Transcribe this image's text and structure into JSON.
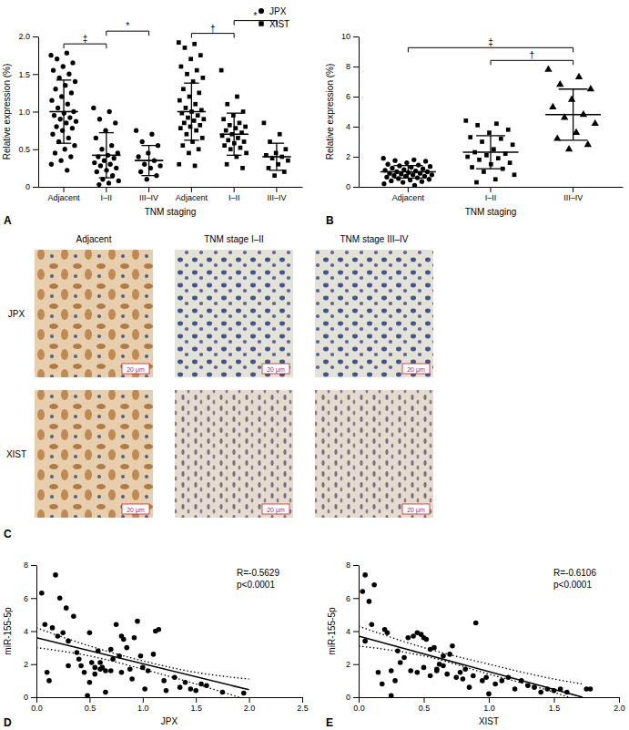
{
  "chart_data": [
    {
      "type": "dot_plot",
      "title": "A",
      "xlabel": "TNM staging",
      "ylabel": "Relative expression (%)",
      "categories": [
        "Adjacent",
        "I–II",
        "III–IV",
        "Adjacent",
        "I–II",
        "III–IV"
      ],
      "ylim": [
        0,
        2
      ],
      "yticks": [
        0,
        0.5,
        {
          "value": 1,
          "label": "1.0"
        },
        1.5,
        {
          "value": 2,
          "label": "2.0"
        }
      ],
      "legend": "top-right",
      "series": [
        {
          "name": "JPX",
          "marker": "circle",
          "color": "#000000",
          "values": [
            [
              1.75,
              1.78,
              1.7,
              1.65,
              1.6,
              1.55,
              1.5,
              1.45,
              1.4,
              1.35,
              1.3,
              1.25,
              1.2,
              1.15,
              1.1,
              1.05,
              1.0,
              0.98,
              0.95,
              0.92,
              0.9,
              0.87,
              0.85,
              0.8,
              0.78,
              0.75,
              0.7,
              0.65,
              0.6,
              0.55,
              0.5,
              0.45,
              0.4,
              0.35,
              0.3,
              0.22
            ],
            [
              1.05,
              1.0,
              0.9,
              0.85,
              0.75,
              0.65,
              0.55,
              0.5,
              0.45,
              0.42,
              0.4,
              0.38,
              0.35,
              0.32,
              0.3,
              0.28,
              0.25,
              0.22,
              0.2,
              0.15,
              0.1,
              0.08,
              0.05,
              0.03
            ],
            [
              0.75,
              0.7,
              0.6,
              0.55,
              0.45,
              0.4,
              0.35,
              0.3,
              0.28,
              0.25,
              0.2,
              0.15,
              0.1
            ],
            null,
            null,
            null
          ],
          "mean": [
            1.0,
            0.42,
            0.35,
            null,
            null,
            null
          ],
          "error": [
            0.42,
            0.3,
            0.2,
            null,
            null,
            null
          ]
        },
        {
          "name": "XIST",
          "marker": "square",
          "color": "#000000",
          "values": [
            null,
            null,
            null,
            [
              1.92,
              1.9,
              1.85,
              1.75,
              1.7,
              1.6,
              1.55,
              1.5,
              1.45,
              1.4,
              1.3,
              1.25,
              1.2,
              1.15,
              1.1,
              1.05,
              1.02,
              1.0,
              0.98,
              0.95,
              0.92,
              0.9,
              0.88,
              0.85,
              0.82,
              0.8,
              0.78,
              0.75,
              0.7,
              0.65,
              0.6,
              0.55,
              0.5,
              0.45,
              0.3,
              0.28
            ],
            [
              1.55,
              1.2,
              1.1,
              1.0,
              0.95,
              0.9,
              0.85,
              0.82,
              0.8,
              0.78,
              0.75,
              0.72,
              0.7,
              0.68,
              0.65,
              0.62,
              0.6,
              0.58,
              0.55,
              0.52,
              0.5,
              0.45,
              0.4,
              0.3,
              0.25
            ],
            [
              0.85,
              0.7,
              0.6,
              0.5,
              0.45,
              0.42,
              0.4,
              0.38,
              0.35,
              0.3,
              0.25,
              0.2,
              0.15
            ]
          ],
          "mean": [
            null,
            null,
            null,
            1.0,
            0.7,
            0.4
          ],
          "error": [
            null,
            null,
            null,
            0.38,
            0.28,
            0.18
          ]
        }
      ],
      "annotations": [
        {
          "between": [
            0,
            1
          ],
          "text": "‡"
        },
        {
          "between": [
            1,
            2
          ],
          "text": "*"
        },
        {
          "between": [
            3,
            4
          ],
          "text": "†"
        },
        {
          "between": [
            4,
            5
          ],
          "text": "*"
        }
      ]
    },
    {
      "type": "dot_plot",
      "title": "B",
      "xlabel": "TNM staging",
      "ylabel": "Relative expression (%)",
      "categories": [
        "Adjacent",
        "I–II",
        "III–IV"
      ],
      "ylim": [
        0,
        10
      ],
      "yticks": [
        0,
        2,
        4,
        6,
        8,
        10
      ],
      "series": [
        {
          "marker": "circle",
          "color": "#000000",
          "values": [
            [
              1.9,
              1.8,
              1.75,
              1.7,
              1.6,
              1.5,
              1.45,
              1.4,
              1.35,
              1.3,
              1.25,
              1.2,
              1.15,
              1.1,
              1.05,
              1.0,
              1.0,
              0.95,
              0.9,
              0.9,
              0.85,
              0.8,
              0.8,
              0.75,
              0.7,
              0.7,
              0.65,
              0.6,
              0.55,
              0.5,
              0.45,
              0.4,
              0.35,
              0.3,
              0.2,
              0.1
            ],
            null,
            null
          ],
          "mean": [
            1.0,
            null,
            null
          ],
          "error": [
            0.42,
            null,
            null
          ]
        },
        {
          "marker": "square",
          "color": "#000000",
          "values": [
            null,
            [
              4.4,
              4.2,
              4.1,
              3.8,
              3.6,
              3.3,
              3.2,
              3.0,
              2.8,
              2.5,
              2.3,
              2.2,
              2.1,
              2.0,
              1.9,
              1.8,
              1.6,
              1.5,
              1.3,
              1.2,
              1.0,
              0.8,
              0.5,
              0.3
            ],
            null
          ],
          "mean": [
            null,
            2.3,
            null
          ],
          "error": [
            null,
            1.1,
            null
          ]
        },
        {
          "marker": "triangle",
          "color": "#000000",
          "values": [
            null,
            null,
            [
              7.8,
              7.3,
              6.8,
              6.5,
              5.8,
              5.3,
              4.8,
              4.6,
              4.2,
              3.6,
              3.2,
              2.8,
              2.5
            ]
          ],
          "mean": [
            null,
            null,
            4.8
          ],
          "error": [
            null,
            null,
            1.7
          ]
        }
      ],
      "annotations": [
        {
          "between": [
            0,
            2
          ],
          "text": "‡"
        },
        {
          "between": [
            1,
            2
          ],
          "text": "†"
        }
      ]
    },
    {
      "type": "scatter",
      "title": "D",
      "xlabel": "JPX",
      "ylabel": "miR-155-5p",
      "color": "#000000",
      "xlim": [
        0,
        2.5
      ],
      "xticks": [
        {
          "value": 0,
          "label": "0.0"
        },
        0.5,
        {
          "value": 1,
          "label": "1.0"
        },
        1.5,
        {
          "value": 2,
          "label": "2.0"
        },
        2.5
      ],
      "ylim": [
        0,
        8
      ],
      "yticks": [
        0,
        2,
        4,
        6,
        8
      ],
      "x": [
        0.05,
        0.08,
        0.1,
        0.12,
        0.15,
        0.18,
        0.2,
        0.22,
        0.25,
        0.28,
        0.3,
        0.3,
        0.35,
        0.38,
        0.4,
        0.42,
        0.45,
        0.48,
        0.5,
        0.5,
        0.52,
        0.55,
        0.55,
        0.58,
        0.6,
        0.6,
        0.62,
        0.65,
        0.65,
        0.7,
        0.7,
        0.72,
        0.75,
        0.78,
        0.8,
        0.8,
        0.82,
        0.85,
        0.88,
        0.9,
        0.92,
        0.95,
        0.98,
        1.0,
        1.02,
        1.05,
        1.1,
        1.12,
        1.15,
        1.2,
        1.22,
        1.3,
        1.35,
        1.4,
        1.45,
        1.5,
        1.55,
        1.6,
        1.75,
        1.95
      ],
      "y": [
        6.3,
        4.4,
        1.5,
        1.0,
        4.2,
        7.4,
        3.7,
        6.0,
        3.9,
        5.4,
        1.9,
        3.4,
        4.9,
        2.7,
        2.3,
        1.9,
        1.5,
        0.1,
        0.9,
        3.9,
        2.1,
        1.8,
        1.4,
        2.8,
        1.7,
        2.1,
        1.8,
        0.3,
        1.6,
        2.9,
        1.6,
        2.3,
        4.4,
        2.5,
        3.7,
        1.5,
        3.5,
        3.0,
        1.7,
        1.1,
        3.6,
        4.6,
        2.5,
        1.8,
        0.5,
        1.6,
        2.6,
        4.0,
        4.1,
        1.0,
        0.4,
        1.2,
        0.6,
        0.9,
        0.5,
        0.4,
        0.8,
        0.7,
        0.3,
        0.25
      ],
      "fit": {
        "x": [
          0,
          2.0
        ],
        "y": [
          3.6,
          0.45
        ]
      },
      "ci": {
        "x": [
          0,
          0.5,
          1.0,
          1.5,
          2.0
        ],
        "upper": [
          4.2,
          3.1,
          2.2,
          1.5,
          1.1
        ],
        "lower": [
          3.0,
          2.5,
          1.7,
          0.8,
          -0.2
        ]
      },
      "annotations": [
        {
          "text": "R=-0.5629"
        },
        {
          "text": "p<0.0001"
        }
      ]
    },
    {
      "type": "scatter",
      "title": "E",
      "xlabel": "XIST",
      "ylabel": "miR-155-5p",
      "color": "#000000",
      "xlim": [
        0,
        2
      ],
      "xticks": [
        {
          "value": 0,
          "label": "0.0"
        },
        0.5,
        {
          "value": 1,
          "label": "1.0"
        },
        1.5,
        {
          "value": 2,
          "label": "2.0"
        }
      ],
      "ylim": [
        0,
        8
      ],
      "yticks": [
        0,
        2,
        4,
        6,
        8
      ],
      "x": [
        0.03,
        0.05,
        0.05,
        0.08,
        0.1,
        0.12,
        0.15,
        0.18,
        0.2,
        0.22,
        0.25,
        0.28,
        0.3,
        0.32,
        0.35,
        0.38,
        0.4,
        0.42,
        0.45,
        0.45,
        0.48,
        0.5,
        0.5,
        0.52,
        0.55,
        0.55,
        0.58,
        0.6,
        0.6,
        0.62,
        0.65,
        0.65,
        0.68,
        0.7,
        0.72,
        0.75,
        0.78,
        0.8,
        0.82,
        0.85,
        0.88,
        0.9,
        0.95,
        0.98,
        1.0,
        1.05,
        1.1,
        1.15,
        1.2,
        1.25,
        1.3,
        1.35,
        1.4,
        1.45,
        1.5,
        1.55,
        1.6,
        1.75,
        1.78,
        0.25
      ],
      "y": [
        6.4,
        7.4,
        3.4,
        5.8,
        4.4,
        6.8,
        1.5,
        0.8,
        4.1,
        3.9,
        1.6,
        1.0,
        2.8,
        2.1,
        2.4,
        3.6,
        1.6,
        3.7,
        3.9,
        1.5,
        3.8,
        3.6,
        1.8,
        3.5,
        2.9,
        1.3,
        3.0,
        1.7,
        1.6,
        2.0,
        1.9,
        2.5,
        1.4,
        2.6,
        3.1,
        1.2,
        1.5,
        1.1,
        1.7,
        0.6,
        1.3,
        4.5,
        1.0,
        1.2,
        0.2,
        0.8,
        1.0,
        1.2,
        0.5,
        1.0,
        0.7,
        0.6,
        0.3,
        0.5,
        0.4,
        0.5,
        0.3,
        0.5,
        0.5,
        0.1
      ],
      "fit": {
        "x": [
          0,
          1.72
        ],
        "y": [
          3.7,
          0
        ]
      },
      "ci": {
        "x": [
          0,
          0.5,
          1.0,
          1.5,
          1.72
        ],
        "upper": [
          4.3,
          3.0,
          2.0,
          1.1,
          0.8
        ],
        "lower": [
          3.1,
          2.5,
          1.4,
          0.3,
          -0.3
        ]
      },
      "annotations": [
        {
          "text": "R=-0.6106"
        },
        {
          "text": "p<0.0001"
        }
      ]
    }
  ],
  "panel_c": {
    "title": "C",
    "columns": [
      "Adjacent",
      "TNM stage I–II",
      "TNM stage III–IV"
    ],
    "rows": [
      "JPX",
      "XIST"
    ],
    "scale_bar": "20 μm"
  }
}
